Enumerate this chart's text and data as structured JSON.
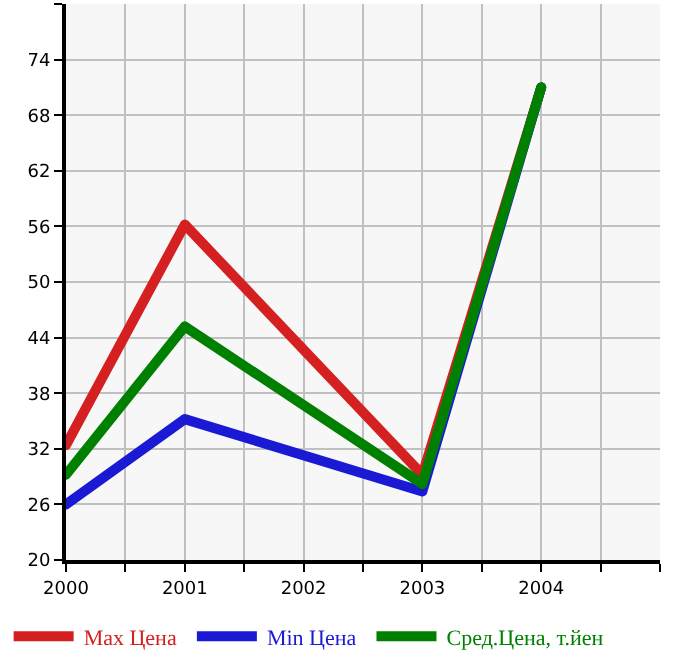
{
  "chart_data": {
    "type": "line",
    "x": [
      2000,
      2001,
      2003,
      2004
    ],
    "series": [
      {
        "name": "Max Цена",
        "color": "#d42020",
        "values": [
          32.4,
          56.2,
          29.2,
          71
        ]
      },
      {
        "name": "Min Цена",
        "color": "#1a1ad4",
        "values": [
          26,
          35.2,
          27.4,
          71
        ]
      },
      {
        "name": "Сред.Цена, т.йен",
        "color": "#008000",
        "values": [
          29.2,
          45.2,
          28.2,
          71
        ]
      }
    ],
    "xlim": [
      2000,
      2005
    ],
    "xticks": [
      2000,
      {
        "value": 2000.5,
        "label": null
      },
      2001,
      {
        "value": 2001.5,
        "label": null
      },
      2002,
      {
        "value": 2002.5,
        "label": null
      },
      2003,
      {
        "value": 2003.5,
        "label": null
      },
      2004,
      {
        "value": 2004.5,
        "label": null
      },
      {
        "value": 2005,
        "label": null
      }
    ],
    "ylim": [
      20,
      80
    ],
    "yticks": [
      20,
      26,
      32,
      38,
      44,
      50,
      56,
      62,
      68,
      74,
      {
        "value": 80,
        "label": null
      }
    ],
    "grid": true,
    "legend": "bottom",
    "marker": "none",
    "line_style": "solid"
  }
}
